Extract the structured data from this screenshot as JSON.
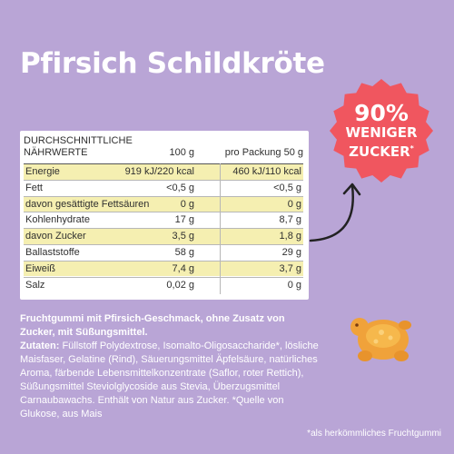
{
  "title": "Pfirsich Schildkröte",
  "nutrition": {
    "header_line1": "DURCHSCHNITTLICHE",
    "header_line2": "NÄHRWERTE",
    "col_100g": "100 g",
    "col_portion": "pro Packung 50 g",
    "rows": [
      {
        "label": "Energie",
        "v1": "919 kJ/220 kcal",
        "v2": "460 kJ/110 kcal",
        "highlight": true
      },
      {
        "label": "Fett",
        "v1": "<0,5 g",
        "v2": "<0,5 g",
        "highlight": false
      },
      {
        "label": "davon gesättigte Fettsäuren",
        "v1": "0 g",
        "v2": "0 g",
        "highlight": true
      },
      {
        "label": "Kohlenhydrate",
        "v1": "17 g",
        "v2": "8,7 g",
        "highlight": false
      },
      {
        "label": "davon Zucker",
        "v1": "3,5 g",
        "v2": "1,8 g",
        "highlight": true
      },
      {
        "label": "Ballaststoffe",
        "v1": "58 g",
        "v2": "29 g",
        "highlight": false
      },
      {
        "label": "Eiweiß",
        "v1": "7,4 g",
        "v2": "3,7 g",
        "highlight": true
      },
      {
        "label": "Salz",
        "v1": "0,02 g",
        "v2": "0 g",
        "highlight": false
      }
    ]
  },
  "badge": {
    "percent": "90%",
    "line1": "WENIGER",
    "line2": "ZUCKER",
    "asterisk": "*",
    "color": "#f0565f"
  },
  "description": {
    "lead": "Fruchtgummi mit Pfirsich-Geschmack, ohne Zusatz von Zucker, mit Süßungsmittel.",
    "ingredients_label": "Zutaten:",
    "ingredients": " Füllstoff Polydextrose, Isomalto-Oligosaccharide*, lösliche Maisfaser, Gelatine (Rind), Säuerungsmittel Äpfelsäure, natürliches Aroma, färbende Lebensmittelkonzentrate (Saflor, roter Rettich), Süßungsmittel Steviolglycoside aus Stevia, Überzugsmittel Carnaubawachs. Enthält von Natur aus Zucker. *Quelle von Glukose, aus Mais"
  },
  "footnote": "*als herkömmliches Fruchtgummi",
  "colors": {
    "background": "#b9a5d6",
    "highlight_row": "#f5efb1",
    "gummy": "#f0a23a"
  }
}
